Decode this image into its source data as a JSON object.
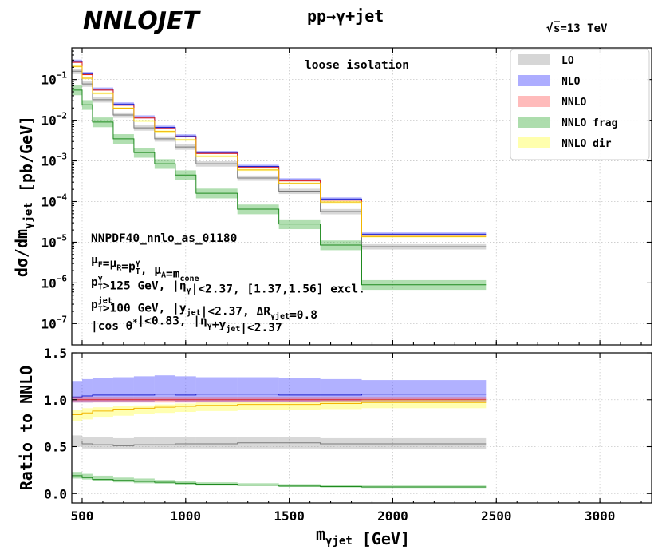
{
  "header": {
    "logo": "NNLOJET",
    "process": "pp→γ+jet",
    "sqrt_s_prefix": "√",
    "sqrt_s_rest": "s=13 TeV"
  },
  "annotation": {
    "isolation": "loose isolation"
  },
  "info": {
    "pdf": "NNPDF40_nnlo_as_01180",
    "scales": [
      {
        "t": "μ",
        "s": "F"
      },
      {
        "t": "=μ"
      },
      {
        "t": "",
        "s": "R"
      },
      {
        "t": "=p"
      },
      {
        "t": "",
        "s": "T",
        "p": "γ"
      },
      {
        "t": ", μ"
      },
      {
        "t": "",
        "s": "A"
      },
      {
        "t": "=m"
      },
      {
        "t": "",
        "s": "cone"
      }
    ],
    "photon_cuts": [
      {
        "t": "p"
      },
      {
        "t": "",
        "s": "T",
        "p": "γ"
      },
      {
        "t": ">125 GeV, |η"
      },
      {
        "t": "",
        "s": "γ"
      },
      {
        "t": "|<2.37, [1.37,1.56] excl."
      }
    ],
    "jet_cuts": [
      {
        "t": "p"
      },
      {
        "t": "",
        "s": "T",
        "p": "jet"
      },
      {
        "t": ">100 GeV, |y"
      },
      {
        "t": "",
        "s": "jet"
      },
      {
        "t": "|<2.37, ΔR"
      },
      {
        "t": "",
        "s": "γjet"
      },
      {
        "t": "=0.8"
      }
    ],
    "angle_cuts": [
      {
        "t": "|cos θ"
      },
      {
        "t": "",
        "p": "*"
      },
      {
        "t": "|<0.83, |η"
      },
      {
        "t": "",
        "s": "γ"
      },
      {
        "t": "+y"
      },
      {
        "t": "",
        "s": "jet"
      },
      {
        "t": "|<2.37"
      }
    ]
  },
  "chart_data": [
    {
      "type": "line",
      "subtype": "step-histogram-with-bands",
      "yscale": "log",
      "ylabel": [
        {
          "t": "dσ/dm"
        },
        {
          "t": "",
          "s": "γjet"
        },
        {
          "t": " [pb/GeV]"
        }
      ],
      "xlim": [
        450,
        3250
      ],
      "ylim": [
        3e-08,
        0.6
      ],
      "bin_edges": [
        450,
        500,
        550,
        650,
        750,
        850,
        950,
        1050,
        1250,
        1450,
        1650,
        1850,
        2450,
        3250
      ],
      "yticks": [
        {
          "value": 1e-07,
          "label": "10",
          "exp": "−7"
        },
        {
          "value": 1e-06,
          "label": "10",
          "exp": "−6"
        },
        {
          "value": 1e-05,
          "label": "10",
          "exp": "−5"
        },
        {
          "value": 0.0001,
          "label": "10",
          "exp": "−4"
        },
        {
          "value": 0.001,
          "label": "10",
          "exp": "−3"
        },
        {
          "value": 0.01,
          "label": "10",
          "exp": "−2"
        },
        {
          "value": 0.1,
          "label": "10",
          "exp": "−1"
        }
      ],
      "series": [
        {
          "name": "LO",
          "color": "#999999",
          "line": "#7a7a7a",
          "values": [
            0.16,
            0.078,
            0.032,
            0.0135,
            0.0065,
            0.0035,
            0.0022,
            0.00085,
            0.00038,
            0.00018,
            5.7e-05,
            7.8e-06
          ],
          "band": [
            0.85,
            1.15
          ]
        },
        {
          "name": "NLO",
          "color": "#3333ff",
          "line": "#2222cc",
          "values": [
            0.28,
            0.14,
            0.058,
            0.025,
            0.012,
            0.0067,
            0.0041,
            0.0016,
            0.00073,
            0.00034,
            0.000115,
            1.58e-05
          ],
          "band": [
            0.93,
            1.1
          ]
        },
        {
          "name": "NNLO",
          "color": "#ff5555",
          "line": "#dd2222",
          "values": [
            0.265,
            0.132,
            0.055,
            0.0235,
            0.0114,
            0.0063,
            0.0039,
            0.00152,
            0.00069,
            0.000322,
            0.000108,
            1.48e-05
          ],
          "band": [
            0.97,
            1.03
          ]
        },
        {
          "name": "NNLO frag",
          "color": "#33aa33",
          "line": "#1f8a1f",
          "values": [
            0.055,
            0.024,
            0.009,
            0.0035,
            0.0016,
            0.00085,
            0.00045,
            0.00016,
            6.5e-05,
            2.8e-05,
            8.5e-06,
            9e-07
          ],
          "band": [
            0.75,
            1.3
          ]
        },
        {
          "name": "NNLO dir",
          "color": "#ffff33",
          "line": "#f2b600",
          "values": [
            0.21,
            0.108,
            0.046,
            0.0198,
            0.0096,
            0.0053,
            0.0033,
            0.0013,
            0.0006,
            0.00028,
            9.7e-05,
            1.38e-05
          ],
          "band": [
            0.94,
            1.06
          ]
        }
      ]
    },
    {
      "type": "line",
      "subtype": "step-ratio-with-bands",
      "ylabel": "Ratio to NNLO",
      "xlabel": [
        {
          "t": "m"
        },
        {
          "t": "",
          "s": "γjet"
        },
        {
          "t": " [GeV]"
        }
      ],
      "xlim": [
        450,
        3250
      ],
      "ylim": [
        -0.1,
        1.5
      ],
      "bin_edges": [
        450,
        500,
        550,
        650,
        750,
        850,
        950,
        1050,
        1250,
        1450,
        1650,
        1850,
        2450,
        3250
      ],
      "xticks": [
        500,
        1000,
        1500,
        2000,
        2500,
        3000
      ],
      "yticks": [
        0.0,
        0.5,
        1.0,
        1.5
      ],
      "ytick_labels": [
        "0.0",
        "0.5",
        "1.0",
        "1.5"
      ],
      "series": [
        {
          "name": "LO",
          "color": "#999999",
          "line": "#7a7a7a",
          "center": [
            0.56,
            0.53,
            0.52,
            0.51,
            0.52,
            0.52,
            0.53,
            0.53,
            0.54,
            0.54,
            0.53,
            0.53
          ],
          "lo": [
            0.5,
            0.48,
            0.47,
            0.47,
            0.47,
            0.47,
            0.48,
            0.48,
            0.48,
            0.48,
            0.47,
            0.47
          ],
          "hi": [
            0.62,
            0.6,
            0.6,
            0.59,
            0.6,
            0.6,
            0.6,
            0.6,
            0.6,
            0.6,
            0.59,
            0.59
          ]
        },
        {
          "name": "NLO",
          "color": "#3333ff",
          "line": "#2222cc",
          "center": [
            1.03,
            1.04,
            1.05,
            1.05,
            1.05,
            1.06,
            1.05,
            1.06,
            1.06,
            1.05,
            1.05,
            1.06
          ],
          "lo": [
            0.97,
            0.97,
            0.98,
            0.98,
            0.98,
            0.99,
            0.98,
            0.98,
            0.98,
            0.98,
            0.98,
            0.98
          ],
          "hi": [
            1.2,
            1.22,
            1.23,
            1.24,
            1.25,
            1.26,
            1.25,
            1.24,
            1.24,
            1.23,
            1.22,
            1.21
          ]
        },
        {
          "name": "NNLO",
          "color": "#ff5555",
          "line": "#dd2222",
          "center": [
            1.0,
            1.0,
            1.0,
            1.0,
            1.0,
            1.0,
            1.0,
            1.0,
            1.0,
            1.0,
            1.0,
            1.0
          ],
          "lo": [
            0.97,
            0.97,
            0.97,
            0.97,
            0.97,
            0.97,
            0.97,
            0.97,
            0.97,
            0.97,
            0.97,
            0.97
          ],
          "hi": [
            1.03,
            1.03,
            1.03,
            1.03,
            1.03,
            1.03,
            1.03,
            1.03,
            1.03,
            1.03,
            1.03,
            1.03
          ]
        },
        {
          "name": "NNLO frag",
          "color": "#33aa33",
          "line": "#1f8a1f",
          "center": [
            0.19,
            0.17,
            0.15,
            0.14,
            0.13,
            0.12,
            0.11,
            0.1,
            0.09,
            0.08,
            0.075,
            0.07
          ],
          "lo": [
            0.16,
            0.15,
            0.13,
            0.12,
            0.11,
            0.105,
            0.095,
            0.085,
            0.08,
            0.07,
            0.065,
            0.06
          ],
          "hi": [
            0.23,
            0.21,
            0.19,
            0.17,
            0.16,
            0.145,
            0.13,
            0.12,
            0.11,
            0.1,
            0.09,
            0.085
          ]
        },
        {
          "name": "NNLO dir",
          "color": "#ffff33",
          "line": "#f2b600",
          "center": [
            0.84,
            0.86,
            0.88,
            0.9,
            0.91,
            0.92,
            0.93,
            0.94,
            0.95,
            0.95,
            0.96,
            0.97
          ],
          "lo": [
            0.77,
            0.79,
            0.81,
            0.83,
            0.85,
            0.86,
            0.87,
            0.88,
            0.89,
            0.89,
            0.9,
            0.91
          ],
          "hi": [
            0.89,
            0.91,
            0.92,
            0.93,
            0.94,
            0.95,
            0.96,
            0.97,
            0.98,
            0.98,
            0.99,
            1.0
          ]
        }
      ]
    }
  ]
}
